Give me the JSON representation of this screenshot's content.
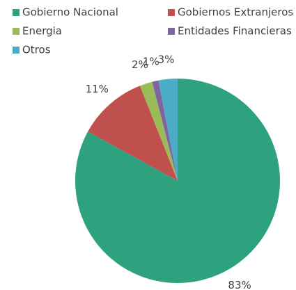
{
  "chart_data": {
    "type": "pie",
    "categories": [
      "Gobierno Nacional",
      "Gobiernos Extranjeros",
      "Energia",
      "Entidades Financieras",
      "Otros"
    ],
    "values": [
      83,
      11,
      2,
      1,
      3
    ],
    "value_labels": [
      "83%",
      "11%",
      "2%",
      "1%",
      "3%"
    ],
    "colors": [
      "#2ea27f",
      "#c0504d",
      "#9bbb59",
      "#8064a2",
      "#4bacc6"
    ],
    "legend": "top"
  }
}
